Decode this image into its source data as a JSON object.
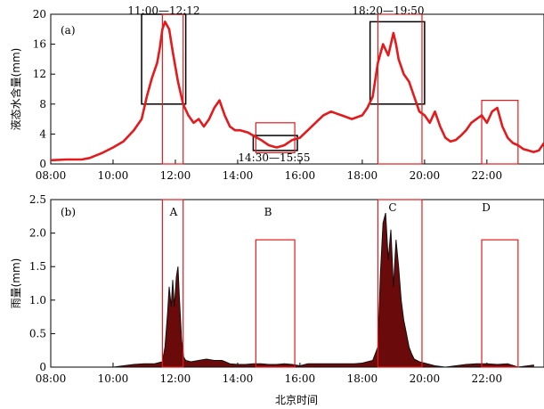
{
  "chart_data": [
    {
      "panel": "(a)",
      "type": "line",
      "ylabel": "液态水含量(mm)",
      "yticks": [
        "0",
        "4",
        "8",
        "12",
        "16",
        "20"
      ],
      "ylim": [
        0,
        20
      ],
      "xlim": [
        "08:00",
        "23:50"
      ],
      "xticks": [
        "08:00",
        "10:00",
        "12:00",
        "14:00",
        "16:00",
        "18:00",
        "20:00",
        "22:00"
      ],
      "annotations": [
        "11:00—12:12",
        "14:30—15:55",
        "18:20—19:50"
      ],
      "series": [
        {
          "color": "#e41a1c",
          "x": [
            "08:00",
            "08:30",
            "09:00",
            "09:15",
            "09:40",
            "10:00",
            "10:20",
            "10:40",
            "10:55",
            "11:05",
            "11:15",
            "11:25",
            "11:30",
            "11:35",
            "11:40",
            "11:48",
            "11:55",
            "12:05",
            "12:15",
            "12:25",
            "12:35",
            "12:45",
            "12:55",
            "13:05",
            "13:15",
            "13:25",
            "13:35",
            "13:45",
            "13:55",
            "14:05",
            "14:20",
            "14:30",
            "14:45",
            "15:00",
            "15:15",
            "15:30",
            "15:45",
            "16:00",
            "16:15",
            "16:30",
            "16:45",
            "17:00",
            "17:20",
            "17:40",
            "18:00",
            "18:10",
            "18:20",
            "18:30",
            "18:40",
            "18:50",
            "19:00",
            "19:05",
            "19:10",
            "19:20",
            "19:30",
            "19:40",
            "19:50",
            "20:00",
            "20:10",
            "20:20",
            "20:30",
            "20:40",
            "20:50",
            "21:00",
            "21:10",
            "21:20",
            "21:30",
            "21:40",
            "21:50",
            "22:00",
            "22:10",
            "22:20",
            "22:30",
            "22:40",
            "22:50",
            "23:00",
            "23:10",
            "23:20",
            "23:30",
            "23:40",
            "23:50"
          ],
          "y": [
            0.5,
            0.6,
            0.6,
            0.8,
            1.5,
            2.2,
            3.0,
            4.5,
            6.0,
            9.0,
            11.5,
            13.5,
            15.5,
            18.0,
            19.0,
            18.0,
            15.0,
            11.0,
            8.0,
            6.5,
            5.5,
            6.0,
            5.0,
            6.0,
            7.5,
            8.5,
            6.5,
            5.0,
            4.5,
            4.5,
            4.2,
            3.8,
            3.2,
            2.5,
            2.2,
            2.5,
            3.2,
            3.5,
            4.5,
            5.5,
            6.5,
            7.0,
            6.5,
            6.0,
            6.5,
            7.5,
            9.0,
            13.5,
            16.0,
            14.5,
            17.5,
            16.0,
            14.0,
            12.0,
            11.0,
            9.0,
            7.0,
            6.5,
            5.5,
            7.0,
            5.0,
            3.5,
            3.0,
            3.2,
            3.8,
            4.5,
            5.5,
            6.0,
            6.5,
            5.5,
            7.0,
            7.5,
            5.0,
            3.5,
            2.8,
            2.5,
            2.0,
            1.8,
            1.6,
            1.8,
            2.8
          ]
        }
      ]
    },
    {
      "panel": "(b)",
      "type": "area",
      "ylabel": "雨量(mm)",
      "xlabel": "北京时间",
      "yticks": [
        "0",
        "0.5",
        "1.0",
        "1.5",
        "2.0",
        "2.5"
      ],
      "ylim": [
        0,
        2.5
      ],
      "xlim": [
        "08:00",
        "23:50"
      ],
      "xticks": [
        "08:00",
        "10:00",
        "12:00",
        "14:00",
        "16:00",
        "18:00",
        "20:00",
        "22:00"
      ],
      "annotations": [
        "A",
        "B",
        "C",
        "D"
      ],
      "series": [
        {
          "color": "#6b0a0a",
          "x": [
            "10:00",
            "10:20",
            "10:40",
            "11:00",
            "11:20",
            "11:35",
            "11:40",
            "11:45",
            "11:48",
            "11:52",
            "11:55",
            "11:58",
            "12:02",
            "12:05",
            "12:08",
            "12:12",
            "12:16",
            "12:20",
            "12:30",
            "12:45",
            "13:00",
            "13:15",
            "13:30",
            "13:45",
            "14:00",
            "14:15",
            "14:30",
            "14:45",
            "15:00",
            "15:15",
            "15:30",
            "15:45",
            "16:00",
            "16:15",
            "16:30",
            "16:45",
            "17:00",
            "17:15",
            "17:30",
            "17:45",
            "18:00",
            "18:10",
            "18:20",
            "18:30",
            "18:35",
            "18:40",
            "18:45",
            "18:50",
            "18:55",
            "19:00",
            "19:05",
            "19:10",
            "19:15",
            "19:20",
            "19:25",
            "19:30",
            "19:35",
            "19:40",
            "19:45",
            "19:50",
            "20:00",
            "20:10",
            "20:20",
            "20:40",
            "21:00",
            "21:20",
            "21:40",
            "22:00",
            "22:20",
            "22:40",
            "23:00",
            "23:30"
          ],
          "y": [
            0,
            0.02,
            0.04,
            0.05,
            0.05,
            0.08,
            0.3,
            0.8,
            1.2,
            0.9,
            1.3,
            0.9,
            1.35,
            1.5,
            1.0,
            0.4,
            0.15,
            0.1,
            0.08,
            0.1,
            0.12,
            0.1,
            0.1,
            0.05,
            0.04,
            0.04,
            0.05,
            0.05,
            0.04,
            0.04,
            0.05,
            0.04,
            0.02,
            0.05,
            0.05,
            0.05,
            0.05,
            0.05,
            0.05,
            0.05,
            0.06,
            0.08,
            0.1,
            0.3,
            1.4,
            2.15,
            2.3,
            1.6,
            2.05,
            1.2,
            1.9,
            1.5,
            1.0,
            0.7,
            0.5,
            0.3,
            0.2,
            0.12,
            0.1,
            0.08,
            0.06,
            0.04,
            0.02,
            0,
            0.02,
            0.04,
            0.05,
            0.05,
            0.04,
            0.05,
            0,
            0.03
          ]
        }
      ]
    }
  ],
  "highlight_boxes": {
    "a_black": [
      [
        "10:55",
        "12:20"
      ],
      [
        "14:30",
        "15:55"
      ],
      [
        "18:15",
        "20:00"
      ]
    ],
    "red": [
      [
        "11:35",
        "12:15"
      ],
      [
        "14:35",
        "15:50"
      ],
      [
        "18:30",
        "19:55"
      ],
      [
        "21:50",
        "23:00"
      ]
    ]
  }
}
